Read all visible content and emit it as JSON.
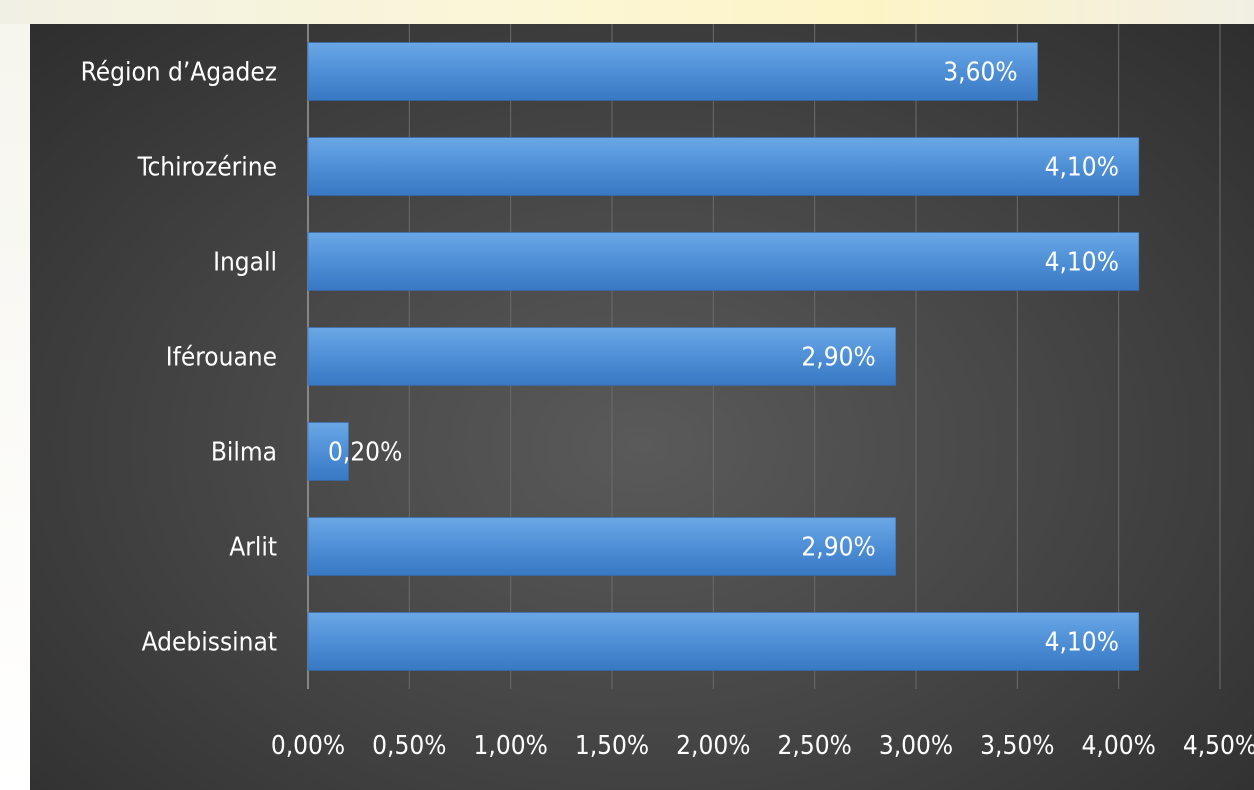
{
  "chart_data": {
    "type": "bar",
    "orientation": "horizontal",
    "categories": [
      "Région d’Agadez",
      "Tchirozérine",
      "Ingall",
      "Iférouane",
      "Bilma",
      "Arlit",
      "Adebissinat"
    ],
    "values": [
      3.6,
      4.1,
      4.1,
      2.9,
      0.2,
      2.9,
      4.1
    ],
    "data_labels": [
      "3,60%",
      "4,10%",
      "4,10%",
      "2,90%",
      "0,20%",
      "2,90%",
      "4,10%"
    ],
    "x_ticks": [
      "0,00%",
      "0,50%",
      "1,00%",
      "1,50%",
      "2,00%",
      "2,50%",
      "3,00%",
      "3,50%",
      "4,00%",
      "4,50%"
    ],
    "xlim": [
      0,
      4.5
    ],
    "title": "",
    "xlabel": "",
    "ylabel": "",
    "grid": true,
    "legend": "none",
    "colors": {
      "bar": "#4e8fd6",
      "bar_light": "#6aa7e6",
      "bar_dark": "#3878c4",
      "grid": "#6b6b6b",
      "text": "#ffffff"
    }
  }
}
